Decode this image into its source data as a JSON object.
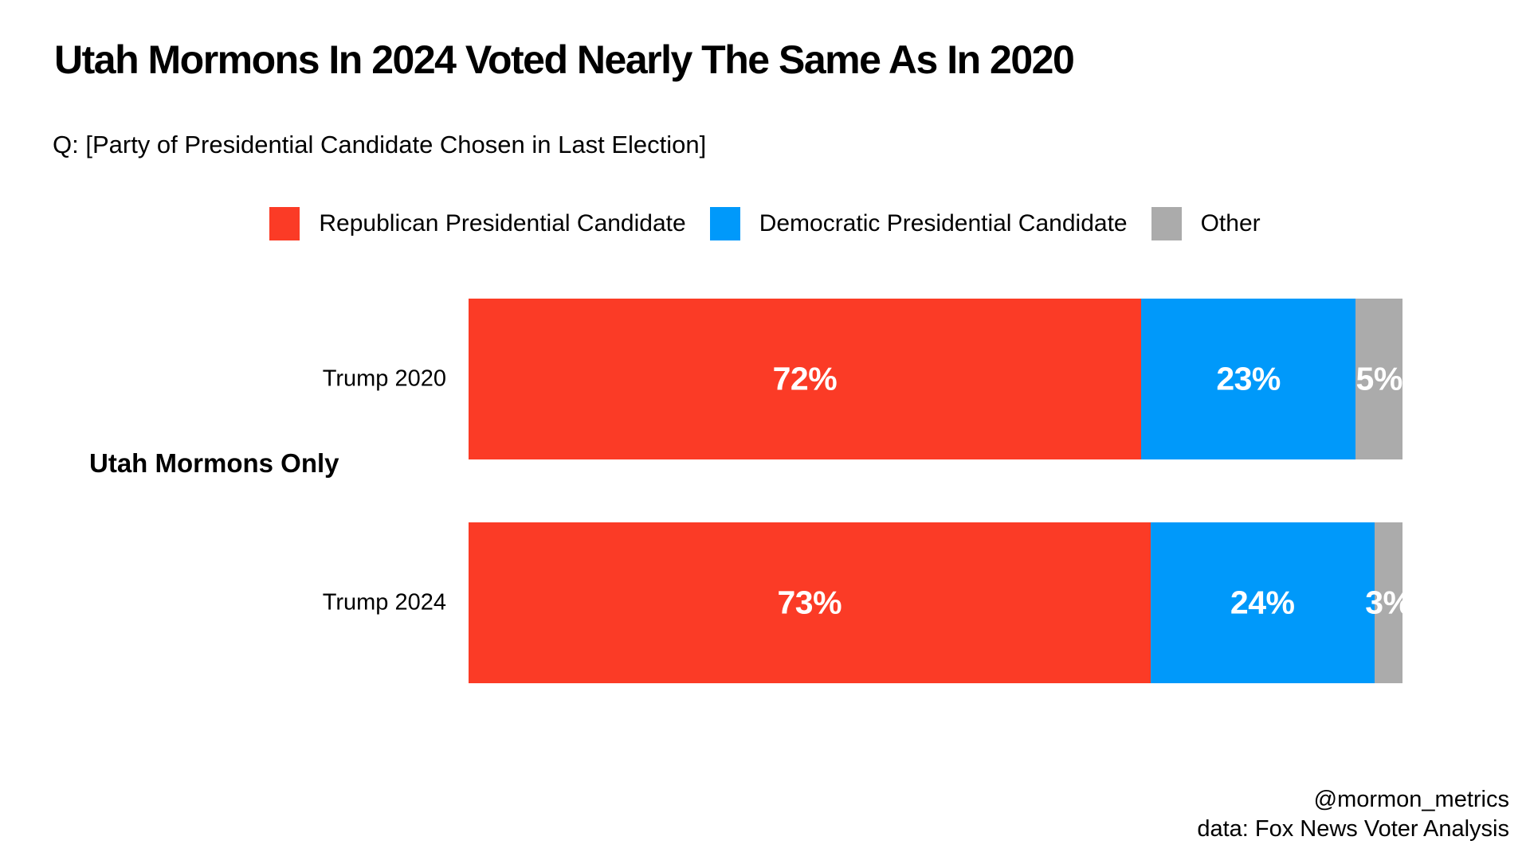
{
  "page": {
    "title": "Utah Mormons In 2024 Voted Nearly The Same As In 2020",
    "subtitle": "Q: [Party of Presidential Candidate Chosen in Last Election]",
    "group_label": "Utah Mormons Only",
    "attribution": {
      "line1": "@mormon_metrics",
      "line2": "data: Fox News Voter Analysis"
    }
  },
  "legend": {
    "items": [
      {
        "label": "Republican Presidential Candidate",
        "color": "#FB3B26"
      },
      {
        "label": "Democratic Presidential Candidate",
        "color": "#0099FA"
      },
      {
        "label": "Other",
        "color": "#ABABAB"
      }
    ]
  },
  "chart_data": {
    "type": "bar",
    "orientation": "horizontal",
    "stacked": true,
    "title": "Utah Mormons In 2024 Voted Nearly The Same As In 2020",
    "categories": [
      "Trump 2020",
      "Trump 2024"
    ],
    "series": [
      {
        "name": "Republican Presidential Candidate",
        "color": "#FB3B26",
        "values": [
          72,
          73
        ]
      },
      {
        "name": "Democratic Presidential Candidate",
        "color": "#0099FA",
        "values": [
          23,
          24
        ]
      },
      {
        "name": "Other",
        "color": "#ABABAB",
        "values": [
          5,
          3
        ]
      }
    ],
    "value_suffix": "%",
    "xlim": [
      0,
      100
    ],
    "grid": false,
    "legend_position": "top-center",
    "bar_label_color": "#FFFFFF",
    "notes": "segment labels are centered; last segment label clips at right plot edge"
  }
}
